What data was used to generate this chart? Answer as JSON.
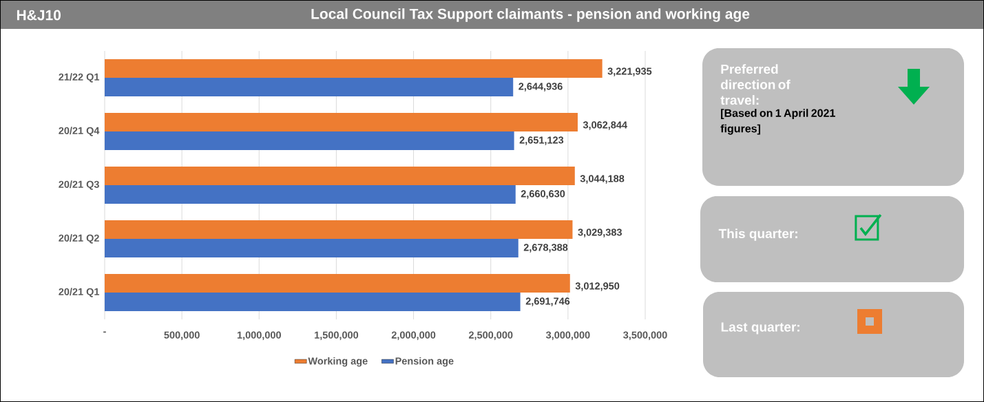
{
  "chart_data": [
    {
      "type": "bar",
      "orientation": "horizontal",
      "title": "Local Council Tax Support claimants - pension and working age",
      "annotations": [
        "H&J10"
      ],
      "categories": [
        "21/22 Q1",
        "20/21 Q4",
        "20/21 Q3",
        "20/21 Q2",
        "20/21 Q1"
      ],
      "series": [
        {
          "name": "Working age",
          "color": "#ed7d31",
          "values": [
            3221935,
            3062844,
            3044188,
            3029383,
            3012950
          ],
          "value_labels": [
            "3,221,935",
            "3,062,844",
            "3,044,188",
            "3,029,383",
            "3,012,950"
          ]
        },
        {
          "name": "Pension age",
          "color": "#4472c4",
          "values": [
            2644936,
            2651123,
            2660630,
            2678388,
            2691746
          ],
          "value_labels": [
            "2,644,936",
            "2,651,123",
            "2,660,630",
            "2,678,388",
            "2,691,746"
          ]
        }
      ],
      "xlim": [
        0,
        3500000
      ],
      "xticks": [
        {
          "value": 0,
          "label": "-"
        },
        {
          "value": 500000,
          "label": "500,000"
        },
        {
          "value": 1000000,
          "label": "1,000,000"
        },
        {
          "value": 1500000,
          "label": "1,500,000"
        },
        {
          "value": 2000000,
          "label": "2,000,000"
        },
        {
          "value": 2500000,
          "label": "2,500,000"
        },
        {
          "value": 3000000,
          "label": "3,000,000"
        },
        {
          "value": 3500000,
          "label": "3,500,000"
        }
      ],
      "grid": "x",
      "legend": "bottom"
    },
    {
      "type": "other",
      "annotations": [
        "Preferred direction of travel:",
        "[Based on 1 April 2021 figures]",
        "This quarter:",
        "Last quarter:"
      ]
    }
  ]
}
